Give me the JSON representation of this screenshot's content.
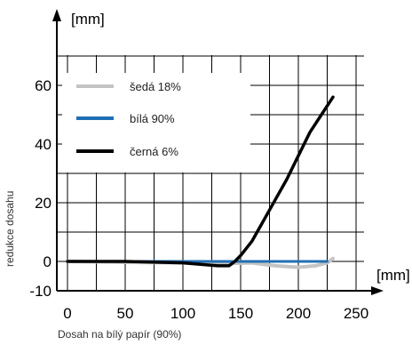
{
  "chart_data": {
    "type": "line",
    "xlabel": "Dosah na bílý papír (90%)",
    "ylabel": "redukce dosahu",
    "x_unit": "[mm]",
    "y_unit": "[mm]",
    "xlim": [
      -10,
      255
    ],
    "ylim": [
      -10,
      72
    ],
    "x_ticks": [
      0,
      50,
      100,
      150,
      200,
      250
    ],
    "y_ticks": [
      -10,
      0,
      20,
      40,
      60
    ],
    "grid": true,
    "legend_position": "top-left",
    "series": [
      {
        "name": "šedá 18%",
        "color": "#c4c4c4",
        "x": [
          0,
          50,
          100,
          140,
          160,
          180,
          200,
          215,
          225,
          230
        ],
        "y": [
          0,
          -0.3,
          -0.5,
          -0.7,
          -0.5,
          -1.5,
          -2,
          -1.5,
          -0.5,
          1
        ]
      },
      {
        "name": "bílá 90%",
        "color": "#1f6fb5",
        "x": [
          0,
          100,
          200,
          225
        ],
        "y": [
          0,
          0,
          0,
          0
        ]
      },
      {
        "name": "černá 6%",
        "color": "#000000",
        "x": [
          0,
          50,
          100,
          130,
          140,
          145,
          150,
          160,
          170,
          180,
          190,
          200,
          210,
          220,
          230
        ],
        "y": [
          0,
          0,
          -0.5,
          -1.5,
          -1.5,
          0,
          2,
          7,
          14,
          21,
          28,
          36,
          44,
          50,
          56
        ]
      }
    ]
  }
}
